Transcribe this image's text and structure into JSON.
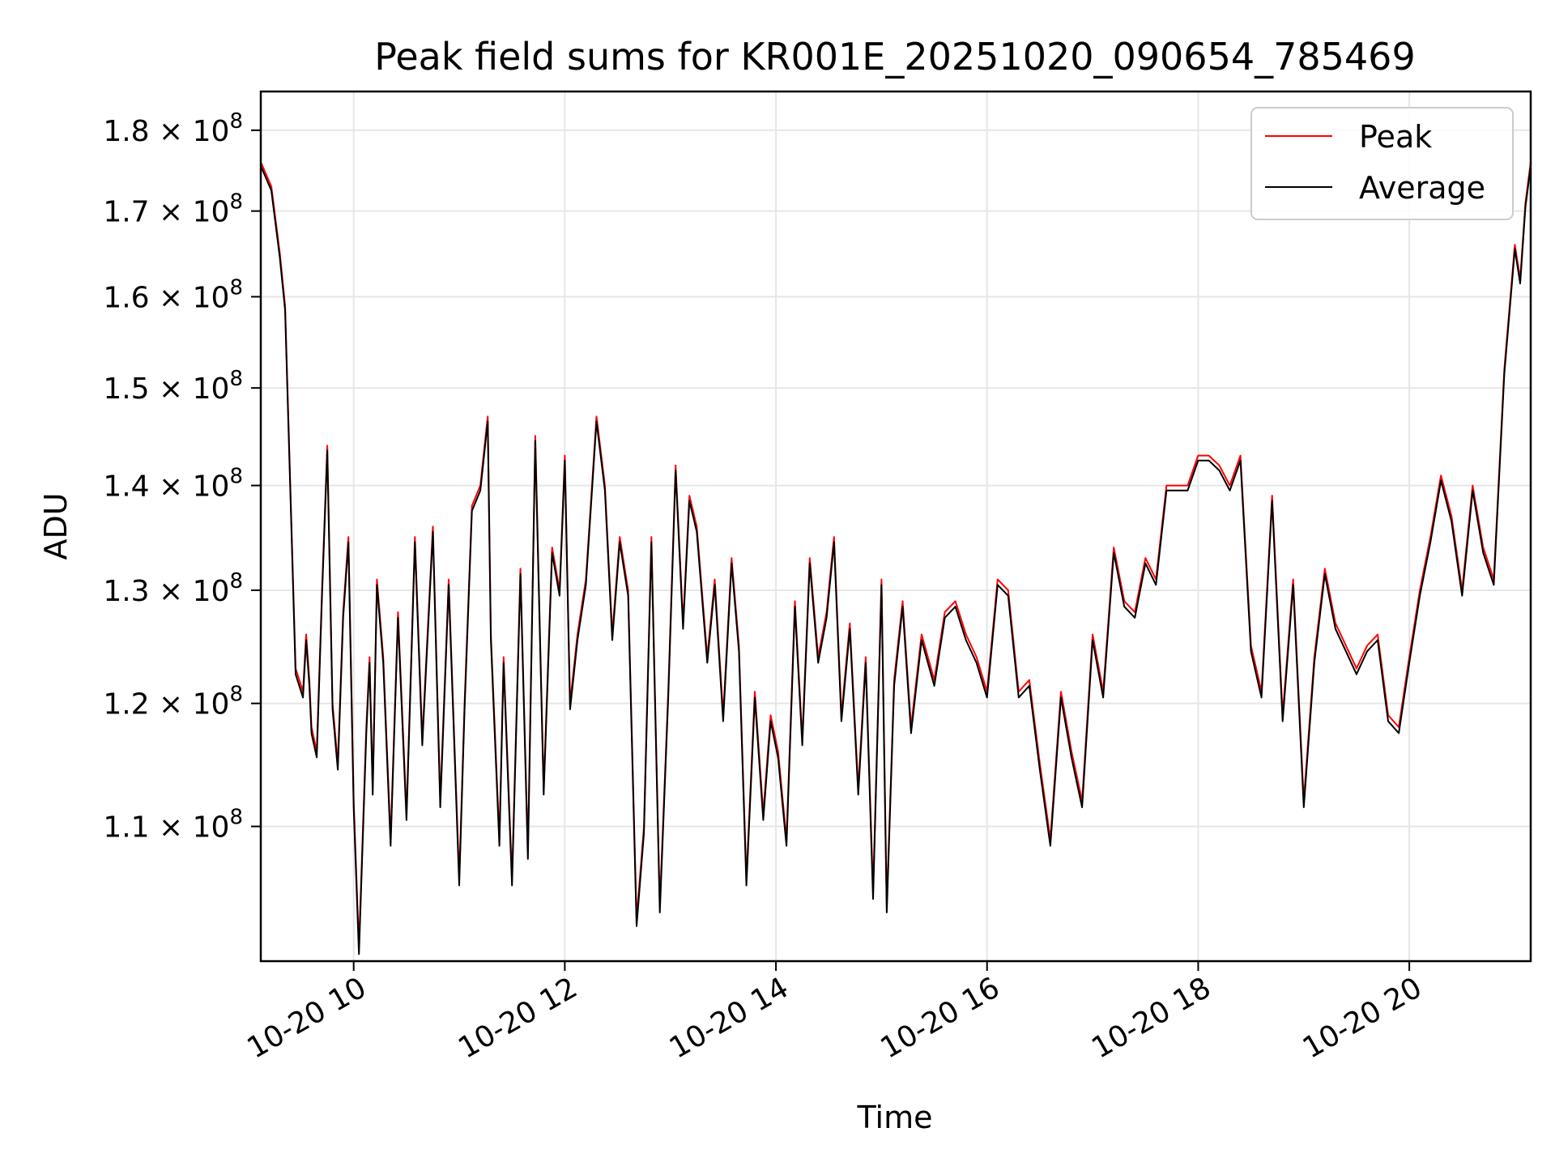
{
  "chart_data": {
    "type": "line",
    "title": "Peak field sums for KR001E_20251020_090654_785469",
    "xlabel": "Time",
    "ylabel": "ADU",
    "xscale": "time (hours)",
    "yscale": "log",
    "xlim": [
      9.12,
      21.15
    ],
    "ylim": [
      100000000,
      185000000
    ],
    "grid": true,
    "legend_position": "top-right",
    "x_ticks": [
      {
        "value": 10,
        "label": "10-20 10"
      },
      {
        "value": 12,
        "label": "10-20 12"
      },
      {
        "value": 14,
        "label": "10-20 14"
      },
      {
        "value": 16,
        "label": "10-20 16"
      },
      {
        "value": 18,
        "label": "10-20 18"
      },
      {
        "value": 20,
        "label": "10-20 20"
      }
    ],
    "y_ticks": [
      {
        "value": 110000000,
        "mantissa": "1.1",
        "base": "10",
        "exponent": "8"
      },
      {
        "value": 120000000,
        "mantissa": "1.2",
        "base": "10",
        "exponent": "8"
      },
      {
        "value": 130000000,
        "mantissa": "1.3",
        "base": "10",
        "exponent": "8"
      },
      {
        "value": 140000000,
        "mantissa": "1.4",
        "base": "10",
        "exponent": "8"
      },
      {
        "value": 150000000,
        "mantissa": "1.5",
        "base": "10",
        "exponent": "8"
      },
      {
        "value": 160000000,
        "mantissa": "1.6",
        "base": "10",
        "exponent": "8"
      },
      {
        "value": 170000000,
        "mantissa": "1.7",
        "base": "10",
        "exponent": "8"
      },
      {
        "value": 180000000,
        "mantissa": "1.8",
        "base": "10",
        "exponent": "8"
      }
    ],
    "x": [
      9.12,
      9.22,
      9.3,
      9.35,
      9.45,
      9.52,
      9.55,
      9.58,
      9.6,
      9.65,
      9.7,
      9.75,
      9.8,
      9.85,
      9.9,
      9.95,
      10.0,
      10.05,
      10.12,
      10.15,
      10.18,
      10.22,
      10.28,
      10.35,
      10.42,
      10.5,
      10.58,
      10.65,
      10.75,
      10.82,
      10.9,
      11.0,
      11.05,
      11.12,
      11.2,
      11.27,
      11.3,
      11.38,
      11.42,
      11.5,
      11.58,
      11.65,
      11.72,
      11.8,
      11.88,
      11.95,
      12.0,
      12.05,
      12.12,
      12.2,
      12.3,
      12.38,
      12.45,
      12.52,
      12.6,
      12.68,
      12.75,
      12.82,
      12.9,
      12.98,
      13.05,
      13.12,
      13.18,
      13.25,
      13.35,
      13.42,
      13.5,
      13.58,
      13.65,
      13.72,
      13.8,
      13.88,
      13.95,
      14.02,
      14.1,
      14.18,
      14.25,
      14.32,
      14.4,
      14.48,
      14.55,
      14.62,
      14.7,
      14.78,
      14.85,
      14.92,
      15.0,
      15.05,
      15.12,
      15.2,
      15.28,
      15.38,
      15.5,
      15.6,
      15.7,
      15.8,
      15.9,
      16.0,
      16.1,
      16.2,
      16.3,
      16.4,
      16.5,
      16.6,
      16.7,
      16.8,
      16.9,
      17.0,
      17.1,
      17.2,
      17.3,
      17.4,
      17.5,
      17.6,
      17.7,
      17.8,
      17.9,
      18.0,
      18.1,
      18.2,
      18.3,
      18.4,
      18.5,
      18.6,
      18.7,
      18.8,
      18.9,
      19.0,
      19.1,
      19.2,
      19.3,
      19.4,
      19.5,
      19.6,
      19.7,
      19.8,
      19.9,
      20.0,
      20.1,
      20.2,
      20.3,
      20.4,
      20.5,
      20.6,
      20.7,
      20.8,
      20.9,
      21.0,
      21.05,
      21.1,
      21.15
    ],
    "series": [
      {
        "name": "Peak",
        "color": "#ff0000",
        "values": [
          176000000,
          173000000,
          165000000,
          159000000,
          123000000,
          121000000,
          126000000,
          122000000,
          118000000,
          116000000,
          130000000,
          144000000,
          120000000,
          115000000,
          128000000,
          135000000,
          112000000,
          101000000,
          118000000,
          124000000,
          113000000,
          131000000,
          124000000,
          109000000,
          128000000,
          111000000,
          135000000,
          117000000,
          136000000,
          112000000,
          131000000,
          106000000,
          120000000,
          138000000,
          140000000,
          147000000,
          126000000,
          109000000,
          124000000,
          106000000,
          132000000,
          108000000,
          145000000,
          113000000,
          134000000,
          130000000,
          143000000,
          120000000,
          126000000,
          131000000,
          147000000,
          140000000,
          126000000,
          135000000,
          130000000,
          103000000,
          110000000,
          135000000,
          104000000,
          121000000,
          142000000,
          127000000,
          139000000,
          136000000,
          124000000,
          131000000,
          119000000,
          133000000,
          125000000,
          106000000,
          121000000,
          111000000,
          119000000,
          116000000,
          109000000,
          129000000,
          117000000,
          133000000,
          124000000,
          128000000,
          135000000,
          119000000,
          127000000,
          113000000,
          124000000,
          105000000,
          131000000,
          104000000,
          122000000,
          129000000,
          118000000,
          126000000,
          122000000,
          128000000,
          129000000,
          126000000,
          124000000,
          121000000,
          131000000,
          130000000,
          121000000,
          122000000,
          115000000,
          109000000,
          121000000,
          116000000,
          112000000,
          126000000,
          121000000,
          134000000,
          129000000,
          128000000,
          133000000,
          131000000,
          140000000,
          140000000,
          140000000,
          143000000,
          143000000,
          142000000,
          140000000,
          143000000,
          125000000,
          121000000,
          139000000,
          119000000,
          131000000,
          112000000,
          124000000,
          132000000,
          127000000,
          125000000,
          123000000,
          125000000,
          126000000,
          119000000,
          118000000,
          124000000,
          130000000,
          135000000,
          141000000,
          137000000,
          130000000,
          140000000,
          134000000,
          131000000,
          152000000,
          166000000,
          162000000,
          171000000,
          176000000
        ]
      },
      {
        "name": "Average",
        "color": "#000000",
        "values": [
          175500000,
          172500000,
          164500000,
          158500000,
          122500000,
          120500000,
          125500000,
          121500000,
          117500000,
          115500000,
          129500000,
          143500000,
          119500000,
          114500000,
          127500000,
          134500000,
          111500000,
          100500000,
          117500000,
          123500000,
          112500000,
          130500000,
          123500000,
          108500000,
          127500000,
          110500000,
          134500000,
          116500000,
          135500000,
          111500000,
          130500000,
          105500000,
          119500000,
          137500000,
          139500000,
          146500000,
          125500000,
          108500000,
          123500000,
          105500000,
          131500000,
          107500000,
          144500000,
          112500000,
          133500000,
          129500000,
          142500000,
          119500000,
          125500000,
          130500000,
          146500000,
          139500000,
          125500000,
          134500000,
          129500000,
          102500000,
          109500000,
          134500000,
          103500000,
          120500000,
          141500000,
          126500000,
          138500000,
          135500000,
          123500000,
          130500000,
          118500000,
          132500000,
          124500000,
          105500000,
          120500000,
          110500000,
          118500000,
          115500000,
          108500000,
          128500000,
          116500000,
          132500000,
          123500000,
          127500000,
          134500000,
          118500000,
          126500000,
          112500000,
          123500000,
          104500000,
          130500000,
          103500000,
          121500000,
          128500000,
          117500000,
          125500000,
          121500000,
          127500000,
          128500000,
          125500000,
          123500000,
          120500000,
          130500000,
          129500000,
          120500000,
          121500000,
          114500000,
          108500000,
          120500000,
          115500000,
          111500000,
          125500000,
          120500000,
          133500000,
          128500000,
          127500000,
          132500000,
          130500000,
          139500000,
          139500000,
          139500000,
          142500000,
          142500000,
          141500000,
          139500000,
          142500000,
          124500000,
          120500000,
          138500000,
          118500000,
          130500000,
          111500000,
          123500000,
          131500000,
          126500000,
          124500000,
          122500000,
          124500000,
          125500000,
          118500000,
          117500000,
          123500000,
          129500000,
          134500000,
          140500000,
          136500000,
          129500000,
          139500000,
          133500000,
          130500000,
          151500000,
          165500000,
          161500000,
          170500000,
          175500000
        ]
      }
    ]
  }
}
